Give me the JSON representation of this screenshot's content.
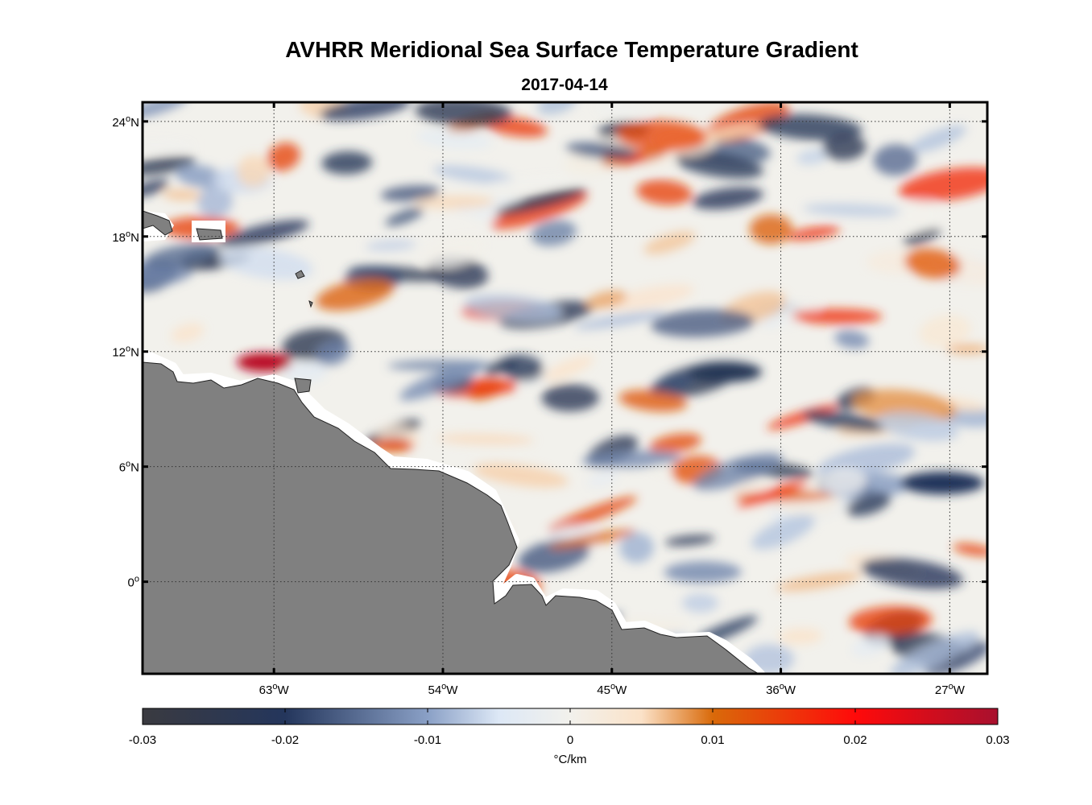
{
  "title": "AVHRR Meridional Sea Surface Temperature Gradient",
  "subtitle": "2017-04-14",
  "lat_ticks": [
    {
      "value": 24,
      "num": "24",
      "hemi": "N"
    },
    {
      "value": 18,
      "num": "18",
      "hemi": "N"
    },
    {
      "value": 12,
      "num": "12",
      "hemi": "N"
    },
    {
      "value": 6,
      "num": "6",
      "hemi": "N"
    },
    {
      "value": 0,
      "num": "0",
      "hemi": ""
    }
  ],
  "lon_ticks": [
    {
      "value": -63,
      "num": "63",
      "hemi": "W"
    },
    {
      "value": -54,
      "num": "54",
      "hemi": "W"
    },
    {
      "value": -45,
      "num": "45",
      "hemi": "W"
    },
    {
      "value": -36,
      "num": "36",
      "hemi": "W"
    },
    {
      "value": -27,
      "num": "27",
      "hemi": "W"
    }
  ],
  "lon_range": [
    -70,
    -25
  ],
  "lat_range": [
    -4.8,
    25
  ],
  "gridlines": true,
  "land_color": "#808080",
  "colorbar": {
    "ticks": [
      "-0.03",
      "-0.02",
      "-0.01",
      "0",
      "0.01",
      "0.02",
      "0.03"
    ],
    "unit": "°C/km",
    "colors": [
      {
        "v": -0.03,
        "c": "#3a3a40"
      },
      {
        "v": -0.02,
        "c": "#24365c"
      },
      {
        "v": -0.01,
        "c": "#8aa0c6"
      },
      {
        "v": -0.005,
        "c": "#dde8f6"
      },
      {
        "v": 0.0,
        "c": "#f2f1ec"
      },
      {
        "v": 0.005,
        "c": "#fbe2c8"
      },
      {
        "v": 0.01,
        "c": "#d96a0a"
      },
      {
        "v": 0.02,
        "c": "#ff0a0a"
      },
      {
        "v": 0.03,
        "c": "#a8102e"
      }
    ]
  }
}
